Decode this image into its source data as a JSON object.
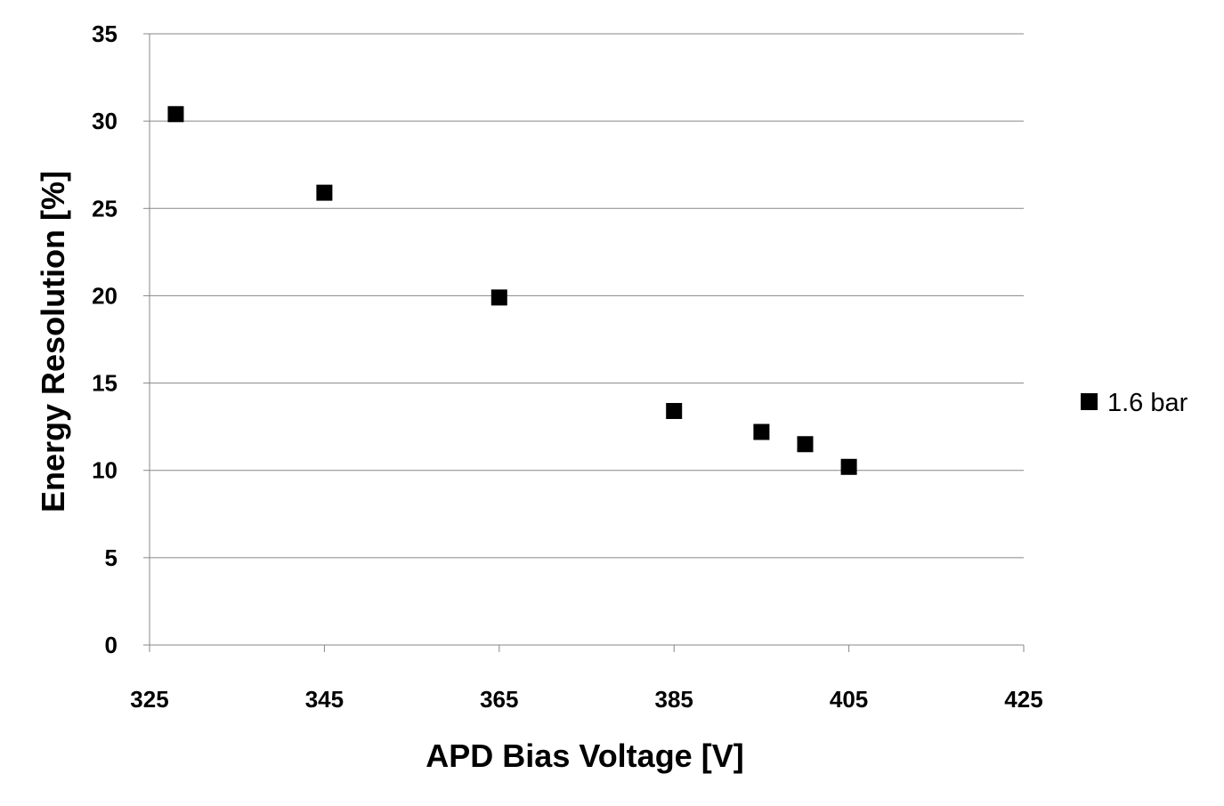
{
  "chart_data": {
    "type": "scatter",
    "title": "",
    "xlabel": "APD Bias Voltage [V]",
    "ylabel": "Energy Resolution [%]",
    "xlim": [
      325,
      425
    ],
    "ylim": [
      0,
      35
    ],
    "xticks": [
      325,
      345,
      365,
      385,
      405,
      425
    ],
    "yticks": [
      0,
      5,
      10,
      15,
      20,
      25,
      30,
      35
    ],
    "grid": "horizontal",
    "legend_position": "right",
    "series": [
      {
        "name": "1.6 bar",
        "marker": "square",
        "color": "#000000",
        "points": [
          {
            "x": 328,
            "y": 30.4
          },
          {
            "x": 345,
            "y": 25.9
          },
          {
            "x": 365,
            "y": 19.9
          },
          {
            "x": 385,
            "y": 13.4
          },
          {
            "x": 395,
            "y": 12.2
          },
          {
            "x": 400,
            "y": 11.5
          },
          {
            "x": 405,
            "y": 10.2
          }
        ]
      }
    ]
  }
}
